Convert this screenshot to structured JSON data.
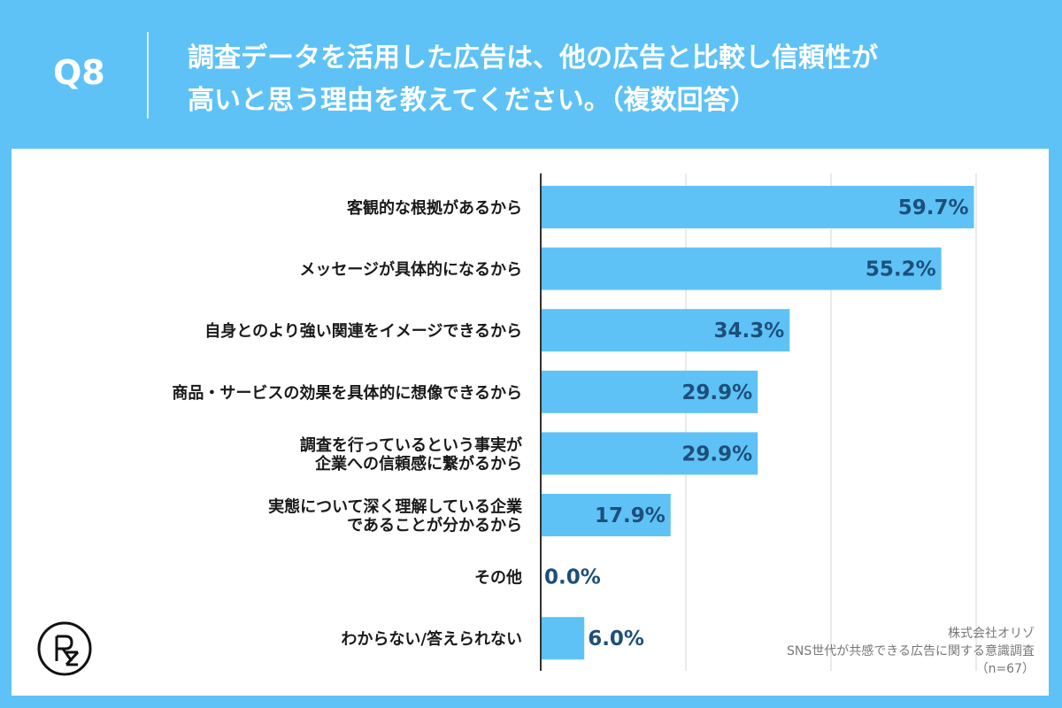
{
  "header": {
    "question_number": "Q8",
    "question_line1": "調査データを活用した広告は、他の広告と比較し信頼性が",
    "question_line2": "高いと思う理由を教えてください。（複数回答）"
  },
  "source": {
    "company": "株式会社オリゾ",
    "survey": "SNS世代が共感できる広告に関する意識調査",
    "sample": "（n=67）"
  },
  "logo": {
    "icon": "orizo-logo-icon"
  },
  "colors": {
    "bar": "#5ec2f6",
    "value_text": "#1d4f7a",
    "background": "#5ec2f6"
  },
  "chart_data": {
    "type": "bar",
    "orientation": "horizontal",
    "unit": "%",
    "xlim": [
      0,
      80
    ],
    "grid": true,
    "categories": [
      [
        "客観的な根拠があるから"
      ],
      [
        "メッセージが具体的になるから"
      ],
      [
        "自身とのより強い関連をイメージできるから"
      ],
      [
        "商品・サービスの効果を具体的に想像できるから"
      ],
      [
        "調査を行っているという事実が",
        "企業への信頼感に繋がるから"
      ],
      [
        "実態について深く理解している企業",
        "であることが分かるから"
      ],
      [
        "その他"
      ],
      [
        "わからない/答えられない"
      ]
    ],
    "values": [
      59.7,
      55.2,
      34.3,
      29.9,
      29.9,
      17.9,
      0.0,
      6.0
    ],
    "value_labels": [
      "59.7%",
      "55.2%",
      "34.3%",
      "29.9%",
      "29.9%",
      "17.9%",
      "0.0%",
      "6.0%"
    ]
  }
}
